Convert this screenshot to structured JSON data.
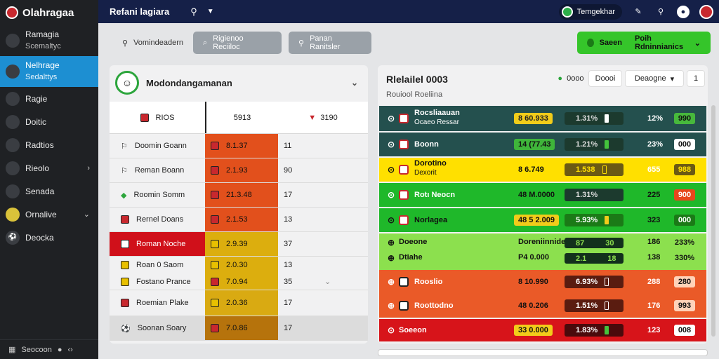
{
  "app": {
    "name": "Olahragaa"
  },
  "sidebar": {
    "items": [
      {
        "label": "Ramagia",
        "sub": "Scemaltyc"
      },
      {
        "label": "Nelhrage",
        "sub": "Sedalttys"
      },
      {
        "label": "Ragie"
      },
      {
        "label": "Doitic"
      },
      {
        "label": "Radtios"
      },
      {
        "label": "Rieolo"
      },
      {
        "label": "Senada"
      },
      {
        "label": "Ornalive"
      },
      {
        "label": "Deocka"
      }
    ],
    "footer": "Seocoon"
  },
  "topbar": {
    "title": "Refani lagiara",
    "toggle_label": "Temgekhar"
  },
  "actionbar": {
    "btn1": "Vomindeadern",
    "btn2": "Rigienoo Reciiloc",
    "btn3": "Panan Ranitsler",
    "btn4_a": "Saeen",
    "btn4_b": "Poih Rdninnianics"
  },
  "left": {
    "title": "Modondangamanan",
    "headers": [
      "RIOS",
      "5913",
      "3190"
    ],
    "rows": [
      {
        "team": "Doomin Goann",
        "val": "8.1.37",
        "num": "11"
      },
      {
        "team": "Reman Boann",
        "val": "2.1.93",
        "num": "90"
      },
      {
        "team": "Roomin Somm",
        "val": "21.3.48",
        "num": "17"
      },
      {
        "team": "Rernel Doans",
        "val": "2.1.53",
        "num": "13"
      },
      {
        "team": "Roman Noche",
        "val": "2.9.39",
        "num": "37"
      },
      {
        "team": "Roan 0 Saom",
        "val": "2.0.30",
        "num": "13"
      },
      {
        "team": "Fostano Prance",
        "val": "7.0.94",
        "num": "35"
      },
      {
        "team": "Roemian Plake",
        "val": "2.0.36",
        "num": "17"
      },
      {
        "team": "Soonan Soary",
        "val": "7.0.86",
        "num": "17"
      }
    ]
  },
  "right": {
    "title": "Rlelailel 0003",
    "subtitle": "Rouiool Roeliina",
    "ctl1": "0ooo",
    "ctl2": "Doooi",
    "ctl3": "Deaogne",
    "ctl4": "1",
    "rows": [
      {
        "name": "Rocsliaauan",
        "sub": "Ocaeo Ressar",
        "odds": "8 60.933",
        "bar": "1.31%",
        "pct": "12%",
        "score": "990"
      },
      {
        "name": "Boonn",
        "odds": "14 (77.43",
        "bar": "1.21%",
        "pct": "23%",
        "score": "000"
      },
      {
        "name": "Dorotino",
        "sub": "Dexorit",
        "odds": "8 6.749",
        "bar": "1.538",
        "pct": "655",
        "score": "988"
      },
      {
        "name": "Rotı Neocn",
        "odds": "48 M.0000",
        "bar": "1.31%",
        "pct": "225",
        "score": "900"
      },
      {
        "name": "Norlagea",
        "odds": "48 5 2.009",
        "bar": "5.93%",
        "pct": "323",
        "score": "000"
      },
      {
        "name": "Doeone",
        "odds": "Doreniinnide",
        "bar": "87",
        "bar2": "30",
        "pct": "186",
        "score": "233%"
      },
      {
        "name": "Dtiahe",
        "odds": "P4 0.000",
        "bar": "2.1",
        "bar2": "18",
        "pct": "138",
        "score": "330%"
      },
      {
        "name": "Rooslio",
        "odds": "8 10.990",
        "bar": "6.93%",
        "pct": "288",
        "score": "280"
      },
      {
        "name": "Roottodno",
        "odds": "48 0.206",
        "bar": "1.51%",
        "pct": "176",
        "score": "993"
      },
      {
        "name": "Soeeon",
        "odds": "33 0.000",
        "bar": "1.83%",
        "pct": "123",
        "score": "008"
      }
    ]
  }
}
